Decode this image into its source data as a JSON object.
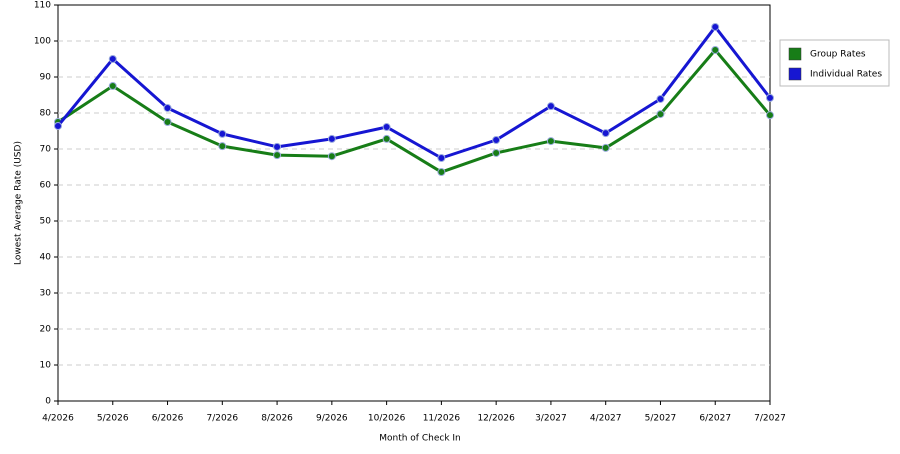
{
  "chart_data": {
    "type": "line",
    "x_label": "Month of Check In",
    "y_label": "Lowest Average Rate (USD)",
    "categories": [
      "4/2026",
      "5/2026",
      "6/2026",
      "7/2026",
      "8/2026",
      "9/2026",
      "10/2026",
      "11/2026",
      "12/2026",
      "3/2027",
      "4/2027",
      "5/2027",
      "6/2027",
      "7/2027"
    ],
    "series": [
      {
        "name": "Group Rates",
        "color": "#177d17",
        "values": [
          77.5,
          87.5,
          77.5,
          70.8,
          68.3,
          68,
          72.8,
          63.6,
          68.9,
          72.2,
          70.3,
          79.7,
          97.5,
          79.4
        ]
      },
      {
        "name": "Individual Rates",
        "color": "#1616d2",
        "values": [
          76.4,
          95,
          81.4,
          74.2,
          70.6,
          72.8,
          76.1,
          67.5,
          72.5,
          81.9,
          74.4,
          83.9,
          103.9,
          84.2
        ]
      }
    ],
    "ylim": [
      0,
      110
    ],
    "yticks": [
      0,
      10,
      20,
      30,
      40,
      50,
      60,
      70,
      80,
      90,
      100,
      110
    ],
    "grid": true,
    "legend": "right"
  }
}
